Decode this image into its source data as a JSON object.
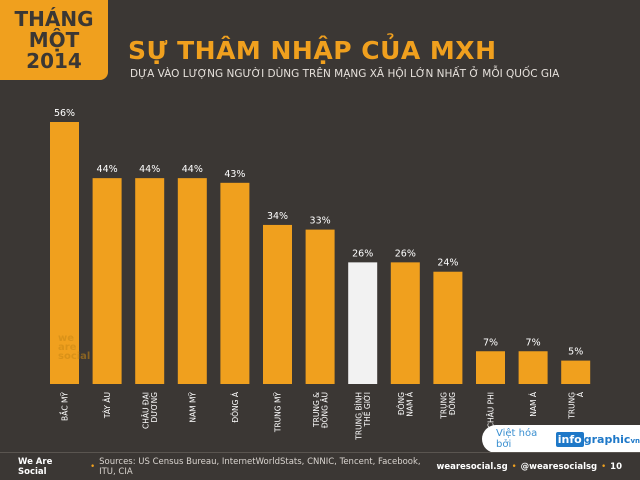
{
  "badge": {
    "line1": "THÁNG",
    "line2": "MỘT",
    "line3": "2014"
  },
  "header": {
    "title": "SỰ THÂM NHẬP CỦA MXH",
    "subtitle": "DỰA VÀO LƯỢNG NGƯỜI DÙNG TRÊN MẠNG XÃ HỘI LỚN NHẤT Ở MỖI QUỐC GIA"
  },
  "watermark": {
    "line1": "we",
    "line2": "are",
    "line3": "social"
  },
  "credit": {
    "lead": "Việt hóa bởi",
    "logo_a": "info",
    "logo_b": "graphic",
    "logo_c": "vn"
  },
  "footer": {
    "brand": "We Are Social",
    "sources": "Sources: US Census Bureau, InternetWorldStats, CNNIC, Tencent, Facebook, ITU, CIA",
    "site": "wearesocial.sg",
    "handle": "@wearesocialsg",
    "page": "10"
  },
  "colors": {
    "background": "#3b3734",
    "bar": "#f0a01e",
    "highlight_bar": "#f2f2f2",
    "text": "#ffffff"
  },
  "chart_data": {
    "type": "bar",
    "categories": [
      [
        "BẮC MỸ"
      ],
      [
        "TÂY ÂU"
      ],
      [
        "CHÂU ĐẠI",
        "DƯƠNG"
      ],
      [
        "NAM MỸ"
      ],
      [
        "ĐÔNG Á"
      ],
      [
        "TRUNG MỸ"
      ],
      [
        "TRUNG &",
        "ĐÔNG ÂU"
      ],
      [
        "TRUNG BÌNH",
        "THẾ GIỚI"
      ],
      [
        "ĐÔNG",
        "NAM Á"
      ],
      [
        "TRUNG",
        "ĐÔNG"
      ],
      [
        "CHÂU PHI"
      ],
      [
        "NAM Á"
      ],
      [
        "TRUNG",
        "Á"
      ]
    ],
    "values": [
      56,
      44,
      44,
      44,
      43,
      34,
      33,
      26,
      26,
      24,
      7,
      7,
      5
    ],
    "value_labels": [
      "56%",
      "44%",
      "44%",
      "44%",
      "43%",
      "34%",
      "33%",
      "26%",
      "26%",
      "24%",
      "7%",
      "7%",
      "5%"
    ],
    "highlight_index": 7,
    "ylim": [
      0,
      56
    ],
    "grid": false,
    "legend": "none"
  }
}
